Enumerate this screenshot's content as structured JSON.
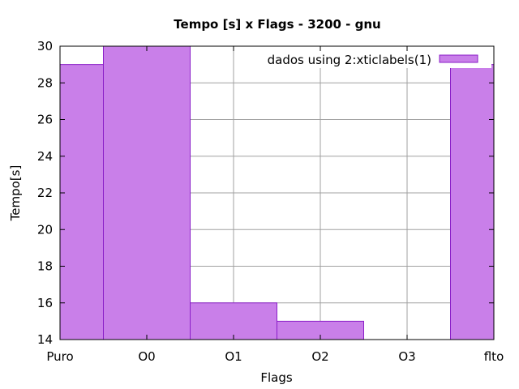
{
  "chart_data": {
    "type": "bar",
    "title": "Tempo [s] x Flags - 3200 - gnu",
    "xlabel": "Flags",
    "ylabel": "Tempo[s]",
    "categories": [
      "Puro",
      "O0",
      "O1",
      "O2",
      "O3",
      "flto"
    ],
    "series": [
      {
        "name": "dados using 2:xticlabels(1)",
        "values": [
          29,
          30,
          16,
          15,
          14,
          29
        ]
      }
    ],
    "ylim": [
      14,
      30
    ],
    "yticks": [
      14,
      16,
      18,
      20,
      22,
      24,
      26,
      28,
      30
    ],
    "grid": true,
    "legend_position": "top-right",
    "colors": {
      "bar_fill": "#c97fe9",
      "bar_stroke": "#8a1ec8",
      "grid": "#a0a0a0"
    }
  }
}
